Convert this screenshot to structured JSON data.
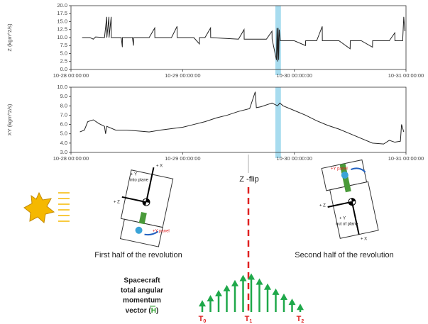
{
  "chart_data": [
    {
      "type": "line",
      "ylabel": "Z (kgm^2/s)",
      "x": [
        0.1,
        0.17,
        0.2,
        0.22,
        0.3,
        0.32,
        0.321,
        0.34,
        0.341,
        0.36,
        0.361,
        0.45,
        0.46,
        0.461,
        0.55,
        0.56,
        0.561,
        0.7,
        0.75,
        0.751,
        0.9,
        0.95,
        0.951,
        1.1,
        1.15,
        1.151,
        1.2,
        1.25,
        1.251,
        1.5,
        1.55,
        1.551,
        1.75,
        1.8,
        1.801,
        1.84,
        1.845,
        1.85,
        1.855,
        1.86,
        1.865,
        1.875,
        2.0,
        2.1,
        2.101,
        2.2,
        2.25,
        2.251,
        2.4,
        2.5,
        2.501,
        2.6,
        2.7,
        2.701,
        2.85,
        2.9,
        2.901,
        2.97,
        2.98,
        2.99
      ],
      "series": [
        {
          "color": "#222222",
          "values": [
            10,
            10,
            9.5,
            10.2,
            10,
            16.5,
            10,
            16.5,
            10,
            16.5,
            10,
            10,
            7,
            10,
            10,
            7.5,
            10,
            10,
            13,
            10,
            10,
            13.5,
            10,
            10,
            8,
            10,
            10,
            13,
            10,
            9.5,
            12.5,
            9.5,
            9.5,
            12,
            9.5,
            3,
            13,
            2.5,
            13,
            3,
            12.5,
            9,
            9,
            7.5,
            9,
            9,
            13.5,
            9,
            9,
            6.5,
            9,
            9,
            7,
            9,
            9,
            11.5,
            9,
            9,
            16.5,
            12
          ]
        }
      ],
      "xlim": [
        0,
        3
      ],
      "xticks": [
        {
          "value": 0,
          "label": "10-28 00:00:00"
        },
        {
          "value": 1,
          "label": "10-29 00:00:00"
        },
        {
          "value": 2,
          "label": "10-30 00:00:00"
        },
        {
          "value": 3,
          "label": "10-31 00:00:00"
        }
      ],
      "ylim": [
        0,
        20
      ],
      "yticks": [
        {
          "value": 0,
          "label": "0.0"
        },
        {
          "value": 2.5,
          "label": "2.5"
        },
        {
          "value": 5,
          "label": "5.0"
        },
        {
          "value": 7.5,
          "label": "7.5"
        },
        {
          "value": 10,
          "label": "10.0"
        },
        {
          "value": 12.5,
          "label": "12.5"
        },
        {
          "value": 15,
          "label": "15.0"
        },
        {
          "value": 17.5,
          "label": "17.5"
        },
        {
          "value": 20,
          "label": "20.0"
        }
      ],
      "highlight": [
        1.83,
        1.88
      ],
      "highlight_color": "#a8dcef"
    },
    {
      "type": "line",
      "ylabel": "XY (kgm^2/s)",
      "x": [
        0.08,
        0.12,
        0.15,
        0.2,
        0.25,
        0.3,
        0.31,
        0.32,
        0.4,
        0.5,
        0.6,
        0.7,
        0.8,
        1.0,
        1.1,
        1.2,
        1.3,
        1.4,
        1.5,
        1.6,
        1.65,
        1.66,
        1.7,
        1.8,
        1.85,
        1.87,
        1.9,
        2.0,
        2.1,
        2.2,
        2.3,
        2.4,
        2.5,
        2.6,
        2.7,
        2.8,
        2.85,
        2.9,
        2.95,
        2.96,
        2.98
      ],
      "series": [
        {
          "color": "#222222",
          "values": [
            5.2,
            5.4,
            6.3,
            6.5,
            6.1,
            5.8,
            5.0,
            5.8,
            5.4,
            5.4,
            5.3,
            5.2,
            5.4,
            5.7,
            6.0,
            6.3,
            6.7,
            7.0,
            7.4,
            7.7,
            9.5,
            7.8,
            7.9,
            8.3,
            8.0,
            8.3,
            8.0,
            7.5,
            7.0,
            6.4,
            5.9,
            5.5,
            5.0,
            4.5,
            4.0,
            3.9,
            4.3,
            4.1,
            4.2,
            6.0,
            5.2
          ]
        }
      ],
      "xlim": [
        0,
        3
      ],
      "xticks": [
        {
          "value": 0,
          "label": "10-28 00:00:00"
        },
        {
          "value": 1,
          "label": "10-29 00:00:00"
        },
        {
          "value": 2,
          "label": "10-30 00:00:00"
        },
        {
          "value": 3,
          "label": "10-31 00:00:00"
        }
      ],
      "ylim": [
        3,
        10
      ],
      "yticks": [
        {
          "value": 3,
          "label": "3.0"
        },
        {
          "value": 4,
          "label": "4.0"
        },
        {
          "value": 5,
          "label": "5.0"
        },
        {
          "value": 6,
          "label": "6.0"
        },
        {
          "value": 7,
          "label": "7.0"
        },
        {
          "value": 8,
          "label": "8.0"
        },
        {
          "value": 9,
          "label": "9.0"
        },
        {
          "value": 10,
          "label": "10.0"
        }
      ],
      "highlight": [
        1.83,
        1.88
      ],
      "highlight_color": "#a8dcef"
    }
  ],
  "diagram": {
    "flip_label": "Z -flip",
    "first_half": "First half of the revolution",
    "second_half": "Second half of the revolution",
    "left_craft": {
      "x_axis": "+ X",
      "y_axis": "+ Y",
      "y_note": "into plane",
      "z_axis": "+ Z",
      "panel": "+Y panel"
    },
    "right_craft": {
      "panel": "+Y panel",
      "z_axis": "+ Z",
      "y_axis": "+ Y",
      "y_note": "out of plane",
      "x_axis": "+ X"
    },
    "momentum_lines": [
      "Spacecraft",
      "total angular",
      "momentum"
    ],
    "vector_prefix": "vector (",
    "vector_symbol": "H",
    "vector_suffix": ")",
    "times": [
      {
        "letter": "T",
        "sub": "0"
      },
      {
        "letter": "T",
        "sub": "1"
      },
      {
        "letter": "T",
        "sub": "2"
      }
    ]
  }
}
